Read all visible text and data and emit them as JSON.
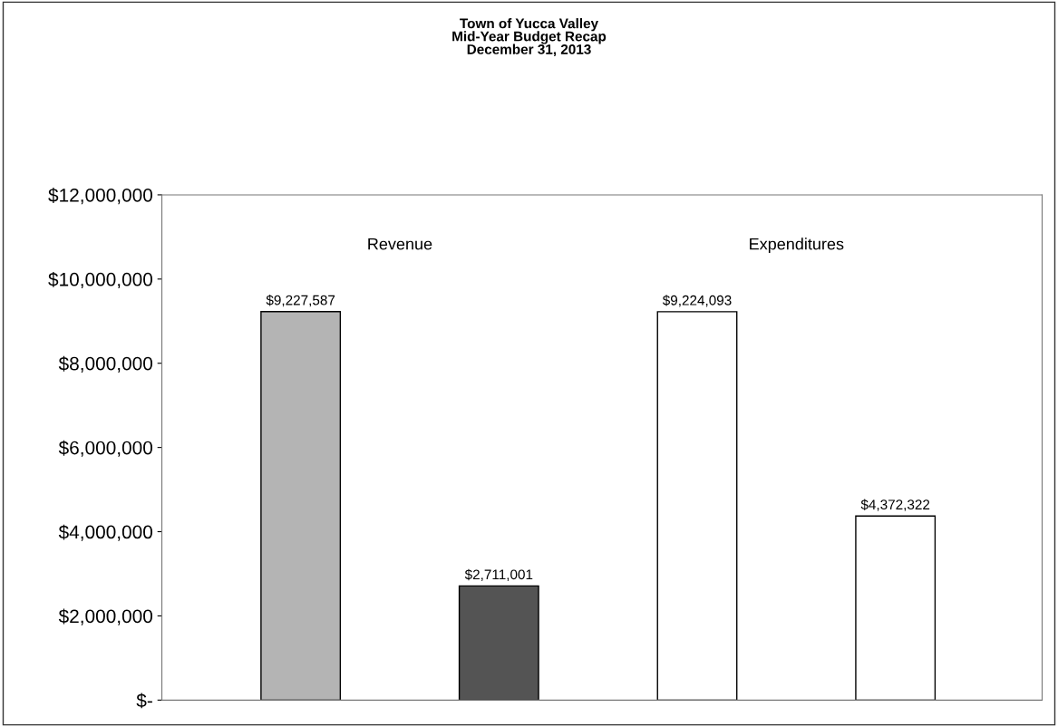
{
  "chart_data": {
    "type": "bar",
    "title": "Town of Yucca Valley\nMid-Year Budget Recap\nDecember 31, 2013",
    "categories": [
      null,
      null,
      null,
      null
    ],
    "values": [
      9227587,
      2711001,
      9224093,
      4372322
    ],
    "colors": [
      "#b4b4b4",
      "#545454",
      "#ffffff",
      "#ffffff"
    ],
    "value_labels": [
      "$9,227,587",
      "$2,711,001",
      "$9,224,093",
      "$4,372,322"
    ],
    "annotations": [
      "Revenue",
      "Expenditures"
    ],
    "ylim": [
      0,
      12000000
    ],
    "yticks": [
      {
        "value": 0,
        "label": "$-"
      },
      {
        "value": 2000000,
        "label": "$2,000,000"
      },
      {
        "value": 4000000,
        "label": "$4,000,000"
      },
      {
        "value": 6000000,
        "label": "$6,000,000"
      },
      {
        "value": 8000000,
        "label": "$8,000,000"
      },
      {
        "value": 10000000,
        "label": "$10,000,000"
      },
      {
        "value": 12000000,
        "label": "$12,000,000"
      }
    ],
    "grid": false
  }
}
